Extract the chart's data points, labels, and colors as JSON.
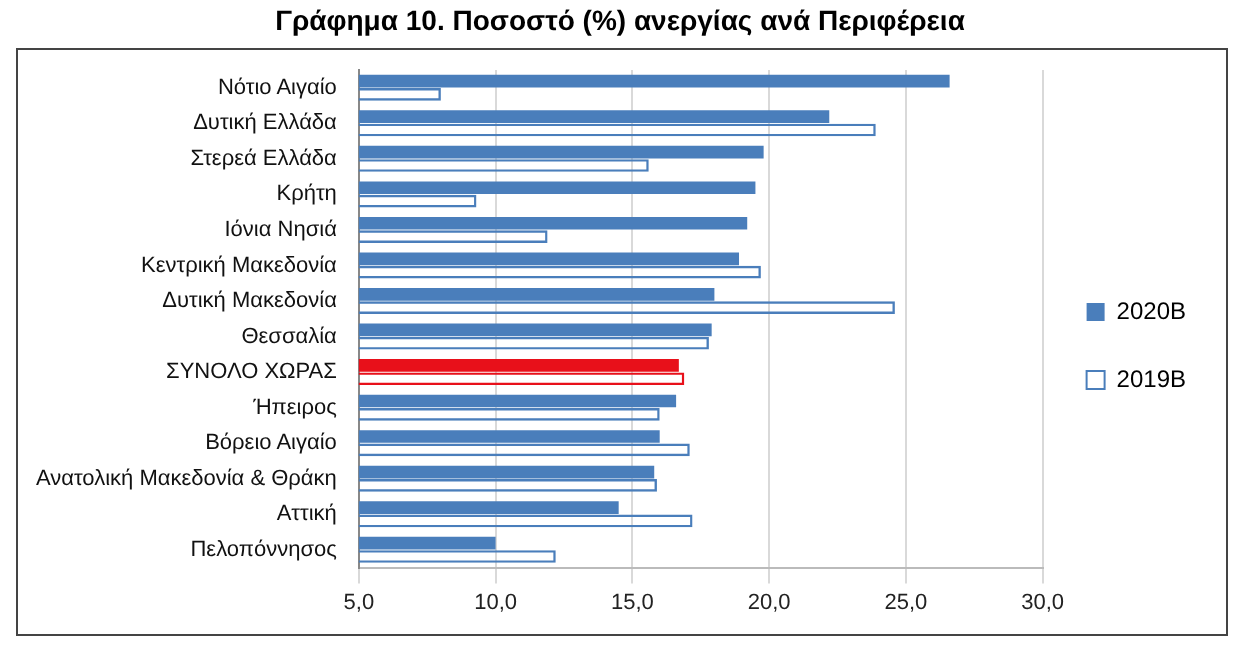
{
  "chart_data": {
    "type": "bar",
    "orientation": "horizontal",
    "title": "Γράφημα 10. Ποσοστό (%) ανεργίας ανά Περιφέρεια",
    "categories": [
      "Νότιο Αιγαίο",
      "Δυτική Ελλάδα",
      "Στερεά Ελλάδα",
      "Κρήτη",
      "Ιόνια Νησιά",
      "Κεντρική Μακεδονία",
      "Δυτική Μακεδονία",
      "Θεσσαλία",
      "ΣΥΝΟΛΟ ΧΩΡΑΣ",
      "Ήπειρος",
      "Βόρειο Αιγαίο",
      "Ανατολική Μακεδονία & Θράκη",
      "Αττική",
      "Πελοπόννησος"
    ],
    "series": [
      {
        "name": "2020Β",
        "color": "#4a7ebb",
        "colors": [
          "#4a7ebb",
          "#4a7ebb",
          "#4a7ebb",
          "#4a7ebb",
          "#4a7ebb",
          "#4a7ebb",
          "#4a7ebb",
          "#4a7ebb",
          "#e8101a",
          "#4a7ebb",
          "#4a7ebb",
          "#4a7ebb",
          "#4a7ebb",
          "#4a7ebb"
        ],
        "values": [
          26.6,
          22.2,
          19.8,
          19.5,
          19.2,
          18.9,
          18.0,
          17.9,
          16.7,
          16.6,
          16.0,
          15.8,
          14.5,
          10.0
        ]
      },
      {
        "name": "2019Β",
        "color": "#4a7ebb",
        "colors": [
          "#4a7ebb",
          "#4a7ebb",
          "#4a7ebb",
          "#4a7ebb",
          "#4a7ebb",
          "#4a7ebb",
          "#4a7ebb",
          "#4a7ebb",
          "#e8101a",
          "#4a7ebb",
          "#4a7ebb",
          "#4a7ebb",
          "#4a7ebb",
          "#4a7ebb"
        ],
        "values": [
          8.0,
          23.9,
          15.6,
          9.3,
          11.9,
          19.7,
          24.6,
          17.8,
          16.9,
          16.0,
          17.1,
          15.9,
          17.2,
          12.2
        ]
      }
    ],
    "xlim": [
      5,
      30
    ],
    "xticks": [
      {
        "value": 5,
        "label": "5,0"
      },
      {
        "value": 10,
        "label": "10,0"
      },
      {
        "value": 15,
        "label": "15,0"
      },
      {
        "value": 20,
        "label": "20,0"
      },
      {
        "value": 25,
        "label": "25,0"
      },
      {
        "value": 30,
        "label": "30,0"
      }
    ],
    "grid": "x",
    "legend": "right"
  }
}
